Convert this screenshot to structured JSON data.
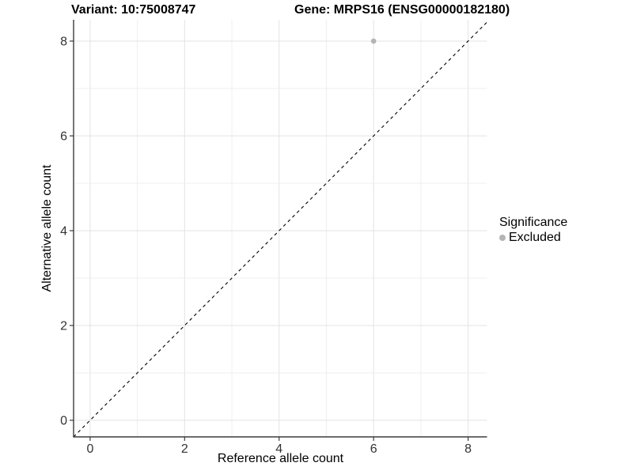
{
  "chart_data": {
    "type": "scatter",
    "title_left": "Variant: 10:75008747",
    "title_right": "Gene: MRPS16 (ENSG00000182180)",
    "xlabel": "Reference allele count",
    "ylabel": "Alternative allele count",
    "x_ticks": [
      0,
      2,
      4,
      6,
      8
    ],
    "y_ticks": [
      0,
      2,
      4,
      6,
      8
    ],
    "xlim": [
      -0.35,
      8.4
    ],
    "ylim": [
      -0.35,
      8.45
    ],
    "grid": {
      "interval": 1,
      "major_every": 2,
      "major_color": "#e3e3e3",
      "minor_color": "#efefef"
    },
    "points": [
      {
        "x": 6,
        "y": 8,
        "series": "Excluded"
      }
    ],
    "series": [
      {
        "name": "Excluded",
        "color": "#b4b4b4"
      }
    ],
    "reference_line": {
      "slope": 1,
      "intercept": 0,
      "style": "dashed",
      "color": "#000000"
    },
    "legend": {
      "title": "Significance",
      "position": "right",
      "items": [
        {
          "label": "Excluded",
          "color": "#b4b4b4"
        }
      ]
    },
    "axis_color": "#3c3c3c",
    "tick_label_color": "#333333",
    "tick_label_size": 16
  }
}
